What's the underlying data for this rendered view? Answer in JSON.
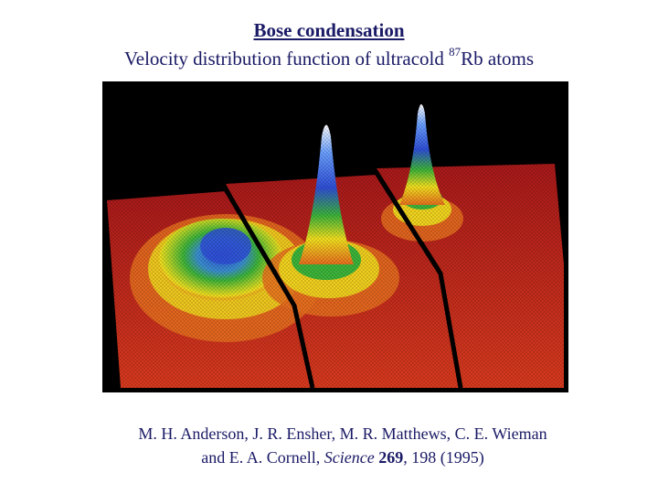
{
  "title": {
    "line1": "Bose condensation",
    "line2_prefix": "Velocity distribution function of ultracold ",
    "line2_superscript": "87",
    "line2_suffix": "Rb atoms"
  },
  "figure": {
    "description_icon": "velocity-distribution-3d-surface-plot",
    "colors": {
      "background": "#000000",
      "base": "#c4231a",
      "orange": "#e8701e",
      "yellow": "#f2e01f",
      "green": "#3db43a",
      "blue": "#2f4fd8"
    }
  },
  "citation": {
    "line1": "M. H. Anderson, J. R. Ensher, M. R. Matthews, C. E. Wieman",
    "line2_prefix": "and E. A. Cornell, ",
    "journal": "Science",
    "volume": "269",
    "line2_suffix": ", 198 (1995)"
  }
}
